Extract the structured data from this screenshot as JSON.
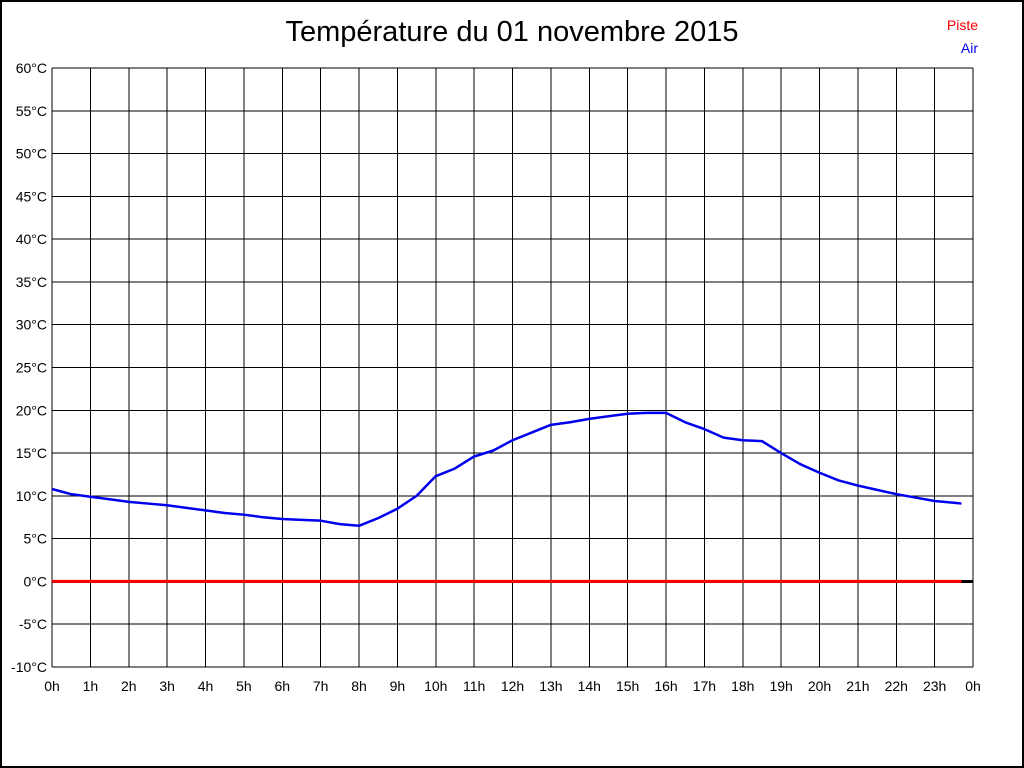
{
  "title": "Température du 01 novembre 2015",
  "legend": [
    {
      "label": "Piste",
      "color": "#ff0000"
    },
    {
      "label": "Air",
      "color": "#0000ee"
    }
  ],
  "chart_data": {
    "type": "line",
    "title": "Température du 01 novembre 2015",
    "xlabel": "",
    "ylabel": "",
    "grid": true,
    "legend_position": "top-right",
    "x_range": [
      0,
      24
    ],
    "x_ticks": [
      "0h",
      "1h",
      "2h",
      "3h",
      "4h",
      "5h",
      "6h",
      "7h",
      "8h",
      "9h",
      "10h",
      "11h",
      "12h",
      "13h",
      "14h",
      "15h",
      "16h",
      "17h",
      "18h",
      "19h",
      "20h",
      "21h",
      "22h",
      "23h",
      "0h"
    ],
    "ylim": [
      -10,
      60
    ],
    "y_tick_step": 5,
    "y_ticks": [
      "60°C",
      "55°C",
      "50°C",
      "45°C",
      "40°C",
      "35°C",
      "30°C",
      "25°C",
      "20°C",
      "15°C",
      "10°C",
      "5°C",
      "0°C",
      "-5°C",
      "-10°C"
    ],
    "zero_line": {
      "value": 0,
      "color": "#000000",
      "width": 3
    },
    "series": [
      {
        "name": "Piste",
        "color": "#ff0000",
        "width": 3,
        "x": [
          0,
          23.7
        ],
        "y": [
          0,
          0
        ]
      },
      {
        "name": "Air",
        "color": "#0000ee",
        "width": 2.5,
        "x": [
          0,
          0.5,
          1,
          1.5,
          2,
          2.5,
          3,
          3.5,
          4,
          4.5,
          5,
          5.5,
          6,
          6.5,
          7,
          7.5,
          8,
          8.5,
          9,
          9.5,
          10,
          10.5,
          11,
          11.5,
          12,
          12.5,
          13,
          13.5,
          14,
          14.5,
          15,
          15.5,
          16,
          16.5,
          17,
          17.5,
          18,
          18.5,
          19,
          19.5,
          20,
          20.5,
          21,
          21.5,
          22,
          22.5,
          23,
          23.5,
          23.7
        ],
        "y": [
          10.8,
          10.2,
          9.9,
          9.6,
          9.3,
          9.1,
          8.9,
          8.6,
          8.3,
          8.0,
          7.8,
          7.5,
          7.3,
          7.2,
          7.1,
          6.7,
          6.5,
          7.4,
          8.5,
          10.0,
          12.3,
          13.2,
          14.6,
          15.3,
          16.5,
          17.4,
          18.3,
          18.6,
          19.0,
          19.3,
          19.6,
          19.7,
          19.7,
          18.6,
          17.8,
          16.8,
          16.5,
          16.4,
          15.0,
          13.7,
          12.7,
          11.8,
          11.2,
          10.7,
          10.2,
          9.8,
          9.4,
          9.2,
          9.1
        ]
      }
    ]
  }
}
